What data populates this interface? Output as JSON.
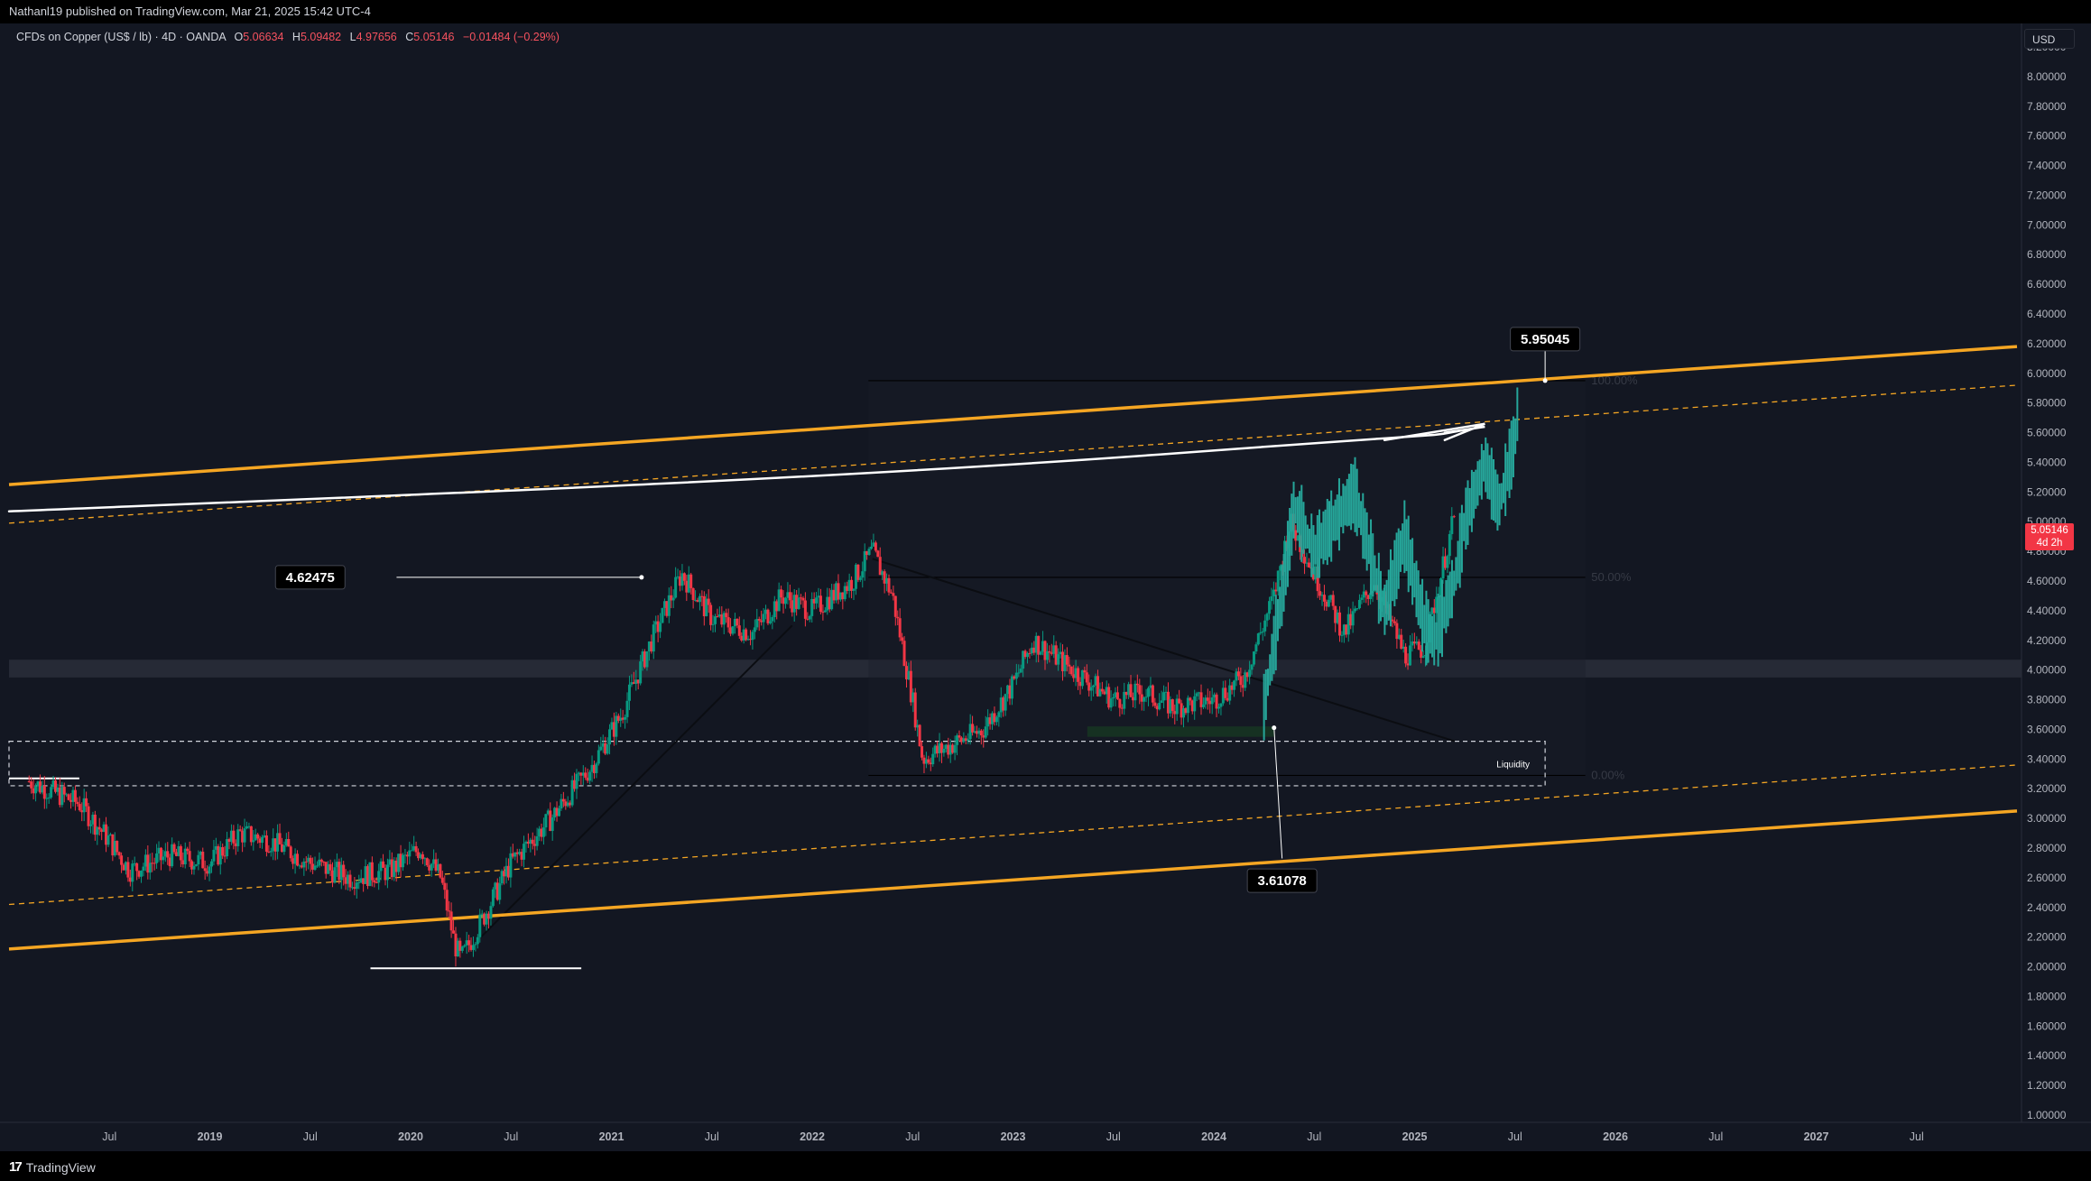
{
  "publisher_line": "Nathanl19 published on TradingView.com, Mar 21, 2025 15:42 UTC-4",
  "legend": {
    "symbol": "CFDs on Copper (US$ / lb) · 4D · OANDA",
    "open_label": "O",
    "open": "5.06634",
    "high_label": "H",
    "high": "5.09482",
    "low_label": "L",
    "low": "4.97656",
    "close_label": "C",
    "close": "5.05146",
    "change": "−0.01484 (−0.29%)"
  },
  "currency_button": "USD",
  "last_price": {
    "value": "5.05146",
    "countdown": "4d 2h"
  },
  "brand": "TradingView",
  "colors": {
    "background": "#131722",
    "up": "#089981",
    "down": "#f23645",
    "projection": "#26a69a",
    "channel": "#f5a623",
    "zone": "#2a2e39"
  },
  "chart_data": {
    "type": "candlestick",
    "ylim": [
      1.0,
      8.2
    ],
    "y_ticks": [
      "1.00000",
      "1.20000",
      "1.40000",
      "1.60000",
      "1.80000",
      "2.00000",
      "2.20000",
      "2.40000",
      "2.60000",
      "2.80000",
      "3.00000",
      "3.20000",
      "3.40000",
      "3.60000",
      "3.80000",
      "4.00000",
      "4.20000",
      "4.40000",
      "4.60000",
      "4.80000",
      "5.00000",
      "5.20000",
      "5.40000",
      "5.60000",
      "5.80000",
      "6.00000",
      "6.20000",
      "6.40000",
      "6.60000",
      "6.80000",
      "7.00000",
      "7.20000",
      "7.40000",
      "7.60000",
      "7.80000",
      "8.00000",
      "8.20000"
    ],
    "x_ticks": [
      {
        "label": "Jul",
        "t": 2018.5
      },
      {
        "label": "2019",
        "t": 2019.0
      },
      {
        "label": "Jul",
        "t": 2019.5
      },
      {
        "label": "2020",
        "t": 2020.0
      },
      {
        "label": "Jul",
        "t": 2020.5
      },
      {
        "label": "2021",
        "t": 2021.0
      },
      {
        "label": "Jul",
        "t": 2021.5
      },
      {
        "label": "2022",
        "t": 2022.0
      },
      {
        "label": "Jul",
        "t": 2022.5
      },
      {
        "label": "2023",
        "t": 2023.0
      },
      {
        "label": "Jul",
        "t": 2023.5
      },
      {
        "label": "2024",
        "t": 2024.0
      },
      {
        "label": "Jul",
        "t": 2024.5
      },
      {
        "label": "2025",
        "t": 2025.0
      },
      {
        "label": "Jul",
        "t": 2025.5
      },
      {
        "label": "2026",
        "t": 2026.0
      },
      {
        "label": "Jul",
        "t": 2026.5
      },
      {
        "label": "2027",
        "t": 2027.0
      },
      {
        "label": "Jul",
        "t": 2027.5
      }
    ],
    "price_path": [
      [
        2018.1,
        3.25
      ],
      [
        2018.35,
        3.1
      ],
      [
        2018.5,
        2.85
      ],
      [
        2018.6,
        2.65
      ],
      [
        2018.8,
        2.75
      ],
      [
        2019.0,
        2.7
      ],
      [
        2019.15,
        2.9
      ],
      [
        2019.3,
        2.85
      ],
      [
        2019.5,
        2.7
      ],
      [
        2019.7,
        2.6
      ],
      [
        2019.9,
        2.65
      ],
      [
        2020.05,
        2.8
      ],
      [
        2020.15,
        2.6
      ],
      [
        2020.22,
        2.15
      ],
      [
        2020.25,
        2.05
      ],
      [
        2020.35,
        2.3
      ],
      [
        2020.5,
        2.7
      ],
      [
        2020.7,
        3.0
      ],
      [
        2020.9,
        3.35
      ],
      [
        2021.05,
        3.7
      ],
      [
        2021.2,
        4.2
      ],
      [
        2021.35,
        4.65
      ],
      [
        2021.5,
        4.35
      ],
      [
        2021.7,
        4.25
      ],
      [
        2021.85,
        4.5
      ],
      [
        2022.0,
        4.4
      ],
      [
        2022.2,
        4.6
      ],
      [
        2022.3,
        4.8
      ],
      [
        2022.4,
        4.5
      ],
      [
        2022.5,
        3.8
      ],
      [
        2022.55,
        3.4
      ],
      [
        2022.7,
        3.5
      ],
      [
        2022.85,
        3.6
      ],
      [
        2023.0,
        3.9
      ],
      [
        2023.1,
        4.2
      ],
      [
        2023.3,
        4.0
      ],
      [
        2023.5,
        3.8
      ],
      [
        2023.65,
        3.85
      ],
      [
        2023.8,
        3.75
      ],
      [
        2024.0,
        3.8
      ],
      [
        2024.15,
        3.95
      ],
      [
        2024.3,
        4.5
      ],
      [
        2024.38,
        5.0
      ],
      [
        2024.5,
        4.65
      ],
      [
        2024.65,
        4.25
      ],
      [
        2024.8,
        4.6
      ],
      [
        2024.95,
        4.1
      ],
      [
        2025.05,
        4.15
      ],
      [
        2025.2,
        5.05
      ]
    ],
    "projection_path": [
      [
        2024.25,
        3.75
      ],
      [
        2024.35,
        4.6
      ],
      [
        2024.4,
        5.1
      ],
      [
        2024.5,
        4.8
      ],
      [
        2024.6,
        5.0
      ],
      [
        2024.7,
        5.2
      ],
      [
        2024.85,
        4.4
      ],
      [
        2024.95,
        4.9
      ],
      [
        2025.05,
        4.3
      ],
      [
        2025.1,
        4.2
      ],
      [
        2025.2,
        4.6
      ],
      [
        2025.25,
        5.0
      ],
      [
        2025.35,
        5.4
      ],
      [
        2025.42,
        5.1
      ],
      [
        2025.5,
        5.55
      ],
      [
        2025.52,
        5.85
      ]
    ],
    "annotations": [
      {
        "text": "4.62475",
        "t": 2021.15,
        "price": 4.62475
      },
      {
        "text": "5.95045",
        "t": 2025.65,
        "price": 5.95045
      },
      {
        "text": "3.61078",
        "t": 2024.3,
        "price": 3.61078
      },
      {
        "text": "Liquidity",
        "t": 2025.6,
        "price": 3.37
      }
    ],
    "fib": [
      {
        "label": "100.00%",
        "price": 5.95045
      },
      {
        "label": "50.00%",
        "price": 4.62475
      },
      {
        "label": "0.00%",
        "price": 3.29
      }
    ],
    "channel": {
      "upper": [
        [
          2018.0,
          5.25
        ],
        [
          2028.0,
          6.18
        ]
      ],
      "upper_inner": [
        [
          2018.0,
          4.99
        ],
        [
          2028.0,
          5.92
        ]
      ],
      "lower_inner": [
        [
          2018.0,
          2.42
        ],
        [
          2028.0,
          3.36
        ]
      ],
      "lower": [
        [
          2018.0,
          2.12
        ],
        [
          2028.0,
          3.05
        ]
      ]
    },
    "support_zone": [
      3.95,
      4.07
    ],
    "liquidity_box": [
      3.22,
      3.52
    ]
  }
}
